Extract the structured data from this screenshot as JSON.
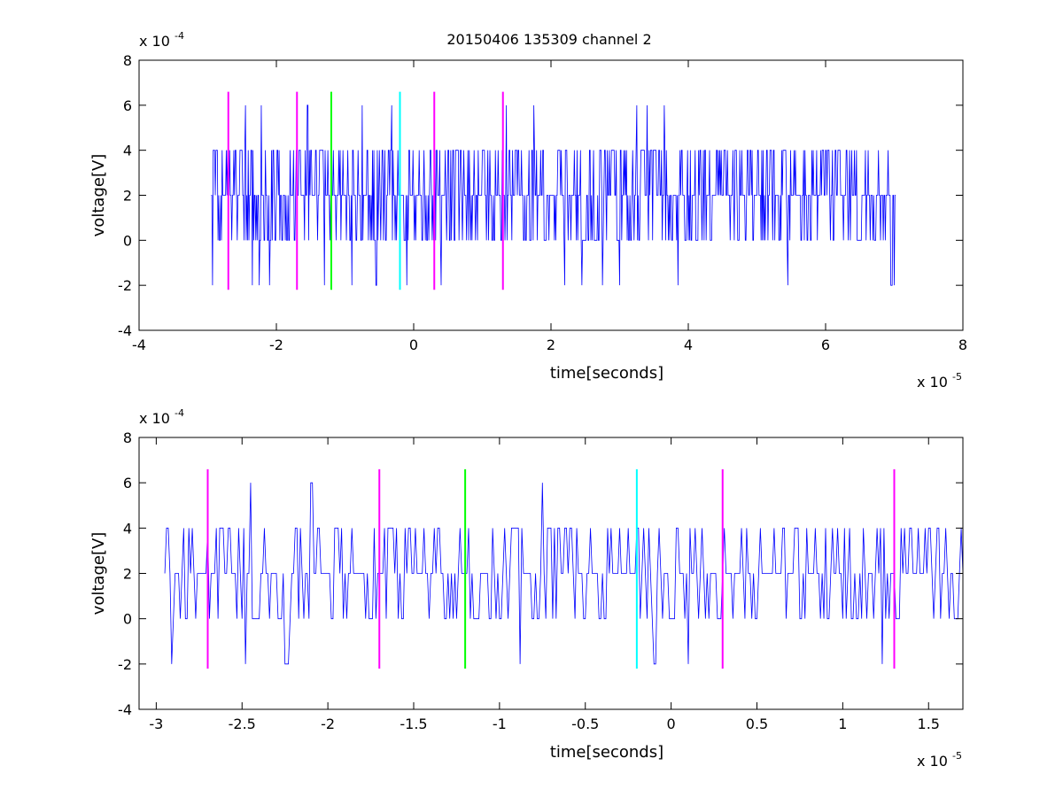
{
  "figure_title": "20150406 135309 channel 2",
  "colors": {
    "signal": "#0000ff",
    "marker_magenta": "#ff00ff",
    "marker_green": "#00ff00",
    "marker_cyan": "#00ffff",
    "axes": "#000000",
    "background": "#ffffff"
  },
  "chart_data": [
    {
      "type": "line",
      "title": "20150406 135309 channel 2",
      "xlabel": "time[seconds]",
      "ylabel": "voltage[V]",
      "x_exponent_label": "x 10",
      "x_exponent_power": "-5",
      "y_exponent_label": "x 10",
      "y_exponent_power": "-4",
      "xlim": [
        -4,
        8
      ],
      "ylim": [
        -4,
        8
      ],
      "x_unit_scale": "1e-5",
      "y_unit_scale": "1e-4",
      "xticks": [
        "-4",
        "-2",
        "0",
        "2",
        "4",
        "6",
        "8"
      ],
      "yticks": [
        "-4",
        "-2",
        "0",
        "2",
        "4",
        "6",
        "8"
      ],
      "grid": false,
      "legend": "none",
      "series": [
        {
          "color": "#0000ff",
          "x_range": [
            -2.95,
            7.02
          ],
          "x_step": 0.01,
          "levels": [
            -2,
            0,
            1,
            2,
            4,
            6
          ],
          "outliers": [
            {
              "x": -2.93,
              "y": -2
            },
            {
              "x": -2.45,
              "y": 6
            },
            {
              "x": -2.35,
              "y": -2
            },
            {
              "x": -2.25,
              "y": -2
            },
            {
              "x": -2.22,
              "y": 6
            },
            {
              "x": -2.1,
              "y": -2
            },
            {
              "x": -1.55,
              "y": 6
            },
            {
              "x": -1.3,
              "y": -2
            },
            {
              "x": -0.9,
              "y": -2
            },
            {
              "x": -0.75,
              "y": 6
            },
            {
              "x": -0.55,
              "y": -2
            },
            {
              "x": -0.32,
              "y": 6
            },
            {
              "x": -0.1,
              "y": -2
            },
            {
              "x": 0.4,
              "y": -2
            },
            {
              "x": 1.35,
              "y": 6
            },
            {
              "x": 1.75,
              "y": 6
            },
            {
              "x": 2.2,
              "y": -2
            },
            {
              "x": 2.45,
              "y": -2
            },
            {
              "x": 2.75,
              "y": -2
            },
            {
              "x": 3.0,
              "y": -2
            },
            {
              "x": 3.25,
              "y": 6
            },
            {
              "x": 3.4,
              "y": 6
            },
            {
              "x": 3.65,
              "y": 6
            },
            {
              "x": 3.85,
              "y": -2
            },
            {
              "x": 5.45,
              "y": -2
            },
            {
              "x": 6.95,
              "y": -2
            },
            {
              "x": 7.0,
              "y": -2
            }
          ]
        }
      ],
      "markers": [
        {
          "x": -2.7,
          "color": "#ff00ff",
          "y_range": [
            -2.2,
            6.6
          ]
        },
        {
          "x": -1.7,
          "color": "#ff00ff",
          "y_range": [
            -2.2,
            6.6
          ]
        },
        {
          "x": -1.2,
          "color": "#00ff00",
          "y_range": [
            -2.2,
            6.6
          ]
        },
        {
          "x": -0.2,
          "color": "#00ffff",
          "y_range": [
            -2.2,
            6.6
          ]
        },
        {
          "x": 0.3,
          "color": "#ff00ff",
          "y_range": [
            -2.2,
            6.6
          ]
        },
        {
          "x": 1.3,
          "color": "#ff00ff",
          "y_range": [
            -2.2,
            6.6
          ]
        }
      ]
    },
    {
      "type": "line",
      "title": "",
      "xlabel": "time[seconds]",
      "ylabel": "voltage[V]",
      "x_exponent_label": "x 10",
      "x_exponent_power": "-5",
      "y_exponent_label": "x 10",
      "y_exponent_power": "-4",
      "xlim": [
        -3.1,
        1.7
      ],
      "ylim": [
        -4,
        8
      ],
      "x_unit_scale": "1e-5",
      "y_unit_scale": "1e-4",
      "xticks": [
        "-3",
        "-2.5",
        "-2",
        "-1.5",
        "-1",
        "-0.5",
        "0",
        "0.5",
        "1",
        "1.5"
      ],
      "yticks": [
        "-4",
        "-2",
        "0",
        "2",
        "4",
        "6",
        "8"
      ],
      "grid": false,
      "legend": "none",
      "series": [
        {
          "color": "#0000ff",
          "x_range": [
            -2.95,
            1.7
          ],
          "x_step": 0.01,
          "levels": [
            -2,
            0,
            1,
            2,
            4,
            6
          ],
          "outliers": [
            {
              "x": -2.91,
              "y": -2
            },
            {
              "x": -2.45,
              "y": 6
            },
            {
              "x": -2.48,
              "y": -2
            },
            {
              "x": -2.25,
              "y": -2
            },
            {
              "x": -2.23,
              "y": -2
            },
            {
              "x": -2.1,
              "y": 6
            },
            {
              "x": -1.62,
              "y": 4
            },
            {
              "x": -0.88,
              "y": -2
            },
            {
              "x": -0.75,
              "y": 6
            },
            {
              "x": -0.37,
              "y": 4
            },
            {
              "x": -0.1,
              "y": -2
            },
            {
              "x": 0.1,
              "y": -2
            },
            {
              "x": 1.23,
              "y": -2
            }
          ]
        }
      ],
      "markers": [
        {
          "x": -2.7,
          "color": "#ff00ff",
          "y_range": [
            -2.2,
            6.6
          ]
        },
        {
          "x": -1.7,
          "color": "#ff00ff",
          "y_range": [
            -2.2,
            6.6
          ]
        },
        {
          "x": -1.2,
          "color": "#00ff00",
          "y_range": [
            -2.2,
            6.6
          ]
        },
        {
          "x": -0.2,
          "color": "#00ffff",
          "y_range": [
            -2.2,
            6.6
          ]
        },
        {
          "x": 0.3,
          "color": "#ff00ff",
          "y_range": [
            -2.2,
            6.6
          ]
        },
        {
          "x": 1.3,
          "color": "#ff00ff",
          "y_range": [
            -2.2,
            6.6
          ]
        }
      ]
    }
  ]
}
